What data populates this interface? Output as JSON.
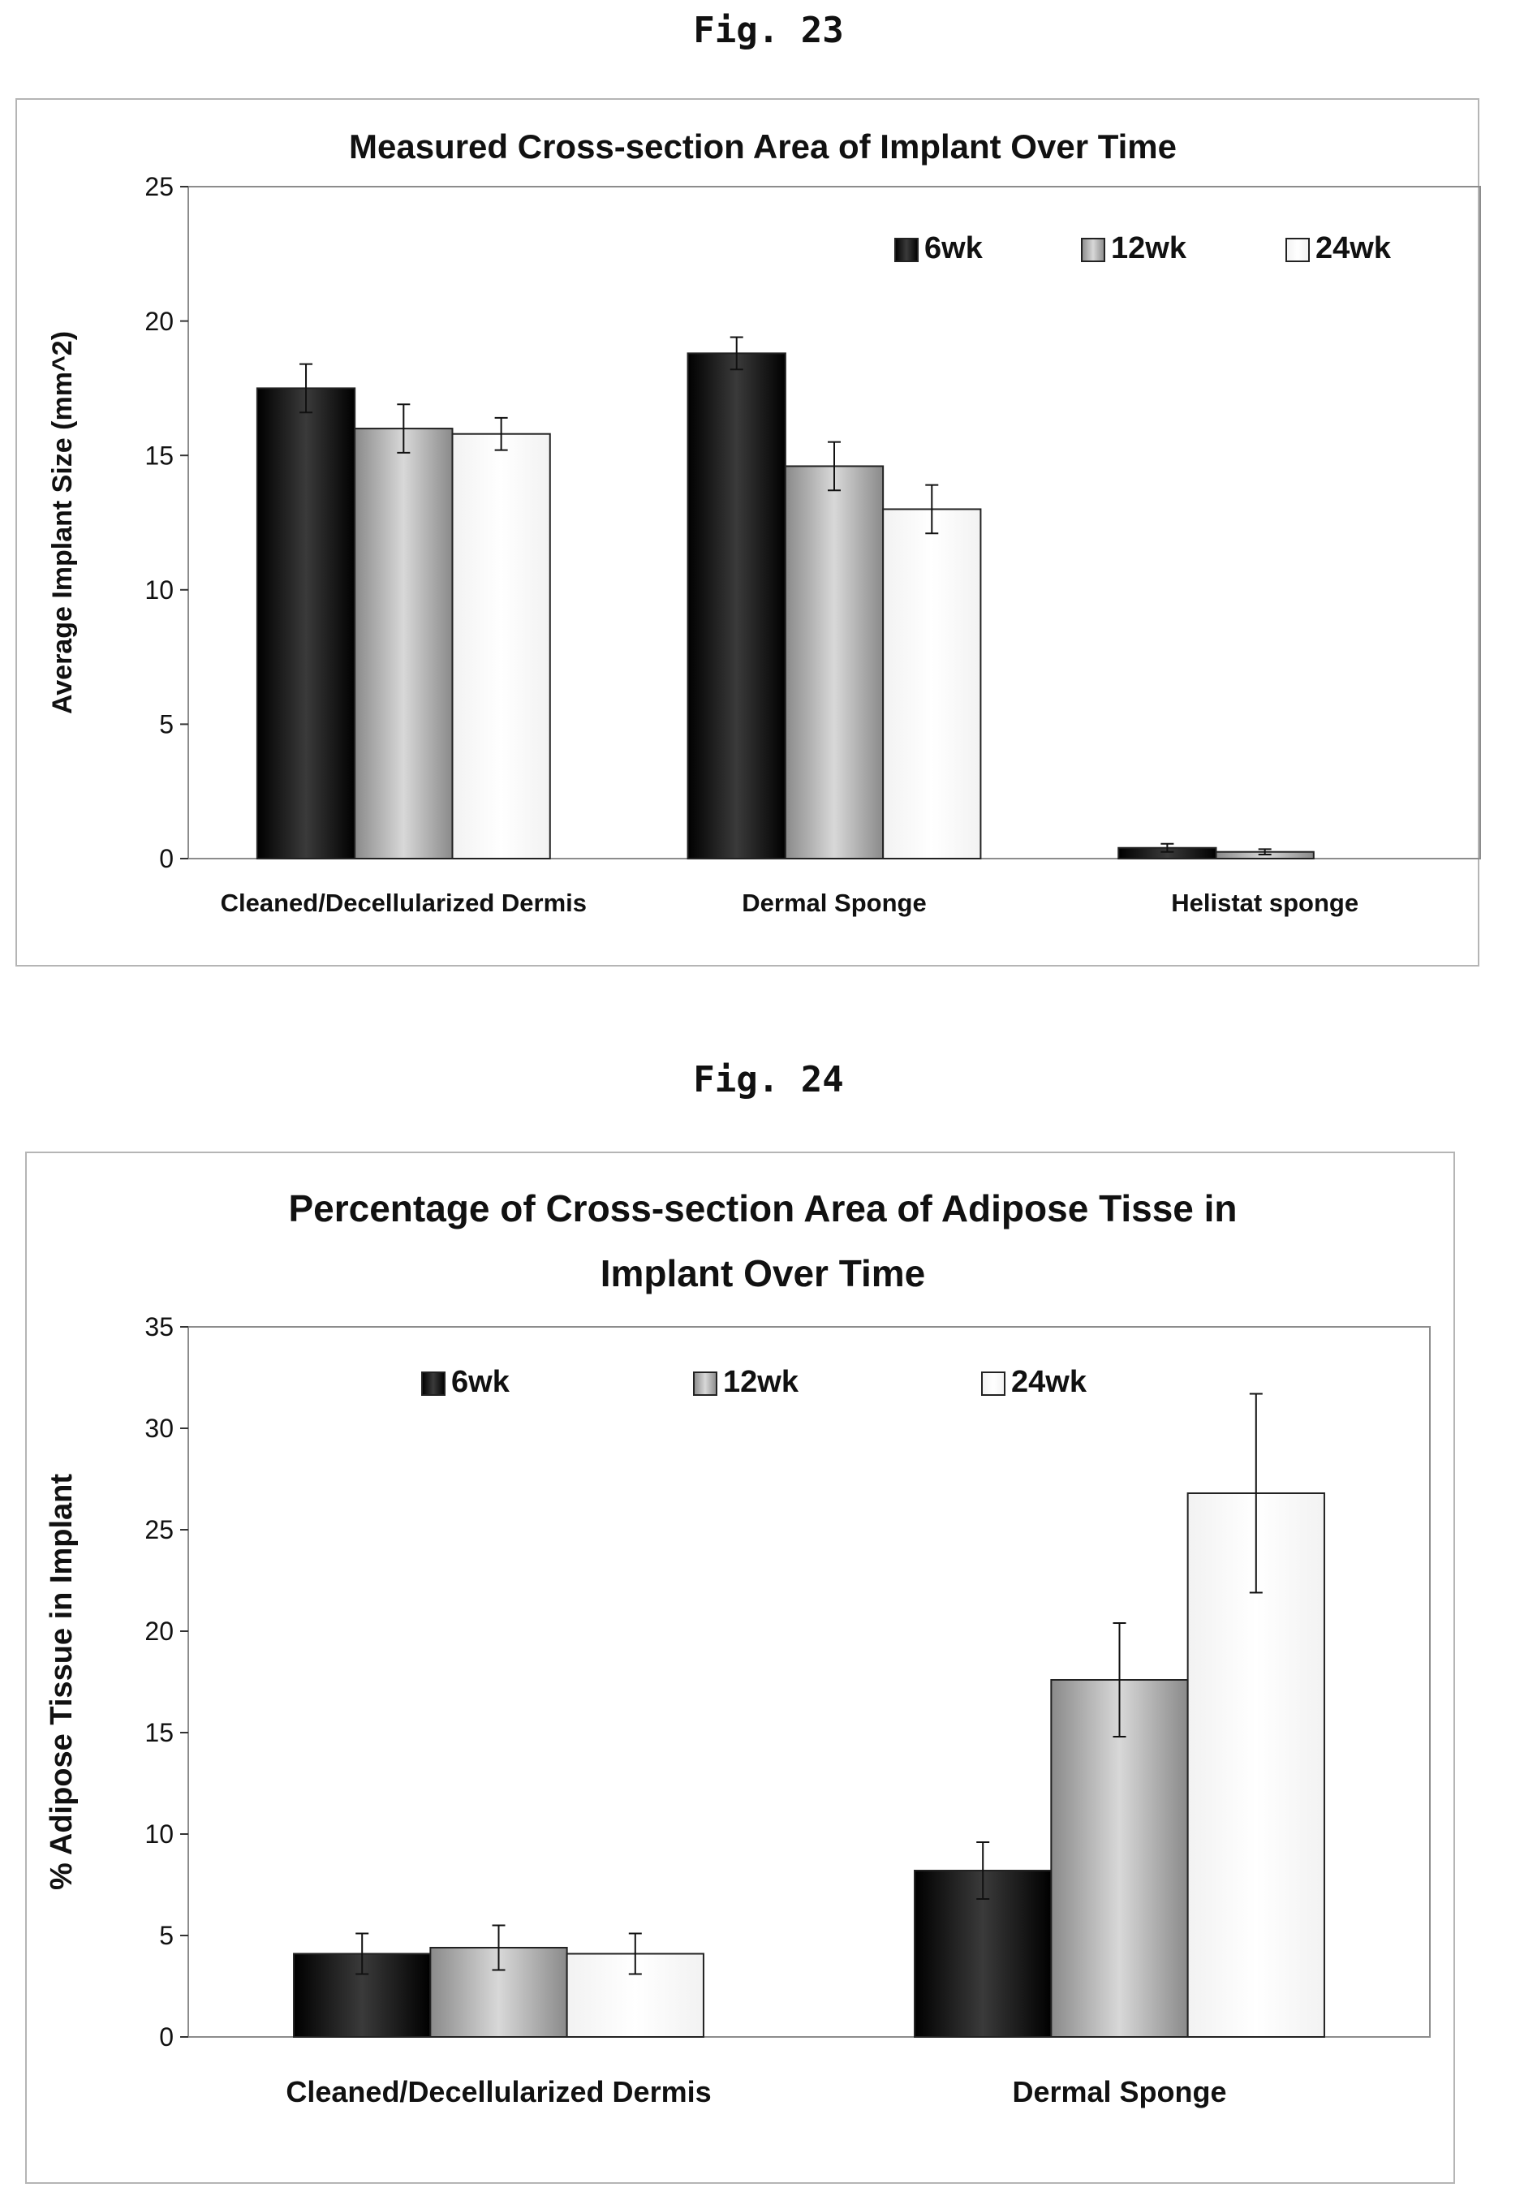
{
  "figures": [
    {
      "label": "Fig. 23"
    },
    {
      "label": "Fig. 24"
    }
  ],
  "chart_data": [
    {
      "type": "bar",
      "title": "Measured Cross-section Area of Implant Over Time",
      "ylabel": "Average Implant Size (mm^2)",
      "xlabel": "",
      "ylim": [
        0,
        25
      ],
      "yticks": [
        0,
        5,
        10,
        15,
        20,
        25
      ],
      "categories": [
        "Cleaned/Decellularized Dermis",
        "Dermal Sponge",
        "Helistat sponge"
      ],
      "legend_position": "top-right",
      "series": [
        {
          "name": "6wk",
          "color": "#111111",
          "values": [
            17.5,
            18.8,
            0.4
          ],
          "errors": [
            0.9,
            0.6,
            0.15
          ]
        },
        {
          "name": "12wk",
          "color": "#a6a6a6",
          "values": [
            16.0,
            14.6,
            0.25
          ],
          "errors": [
            0.9,
            0.9,
            0.1
          ]
        },
        {
          "name": "24wk",
          "color": "#ffffff",
          "values": [
            15.8,
            13.0,
            null
          ],
          "errors": [
            0.6,
            0.9,
            null
          ]
        }
      ]
    },
    {
      "type": "bar",
      "title_lines": [
        "Percentage of Cross-section Area of Adipose Tisse in",
        "Implant Over Time"
      ],
      "ylabel": "% Adipose Tissue in Implant",
      "xlabel": "",
      "ylim": [
        0,
        35
      ],
      "yticks": [
        0,
        5,
        10,
        15,
        20,
        25,
        30,
        35
      ],
      "categories": [
        "Cleaned/Decellularized Dermis",
        "Dermal Sponge"
      ],
      "legend_position": "top",
      "series": [
        {
          "name": "6wk",
          "color": "#111111",
          "values": [
            4.1,
            8.2
          ],
          "errors": [
            1.0,
            1.4
          ]
        },
        {
          "name": "12wk",
          "color": "#a6a6a6",
          "values": [
            4.4,
            17.6
          ],
          "errors": [
            1.1,
            2.8
          ]
        },
        {
          "name": "24wk",
          "color": "#ffffff",
          "values": [
            4.1,
            26.8
          ],
          "errors": [
            1.0,
            4.9
          ]
        }
      ]
    }
  ]
}
